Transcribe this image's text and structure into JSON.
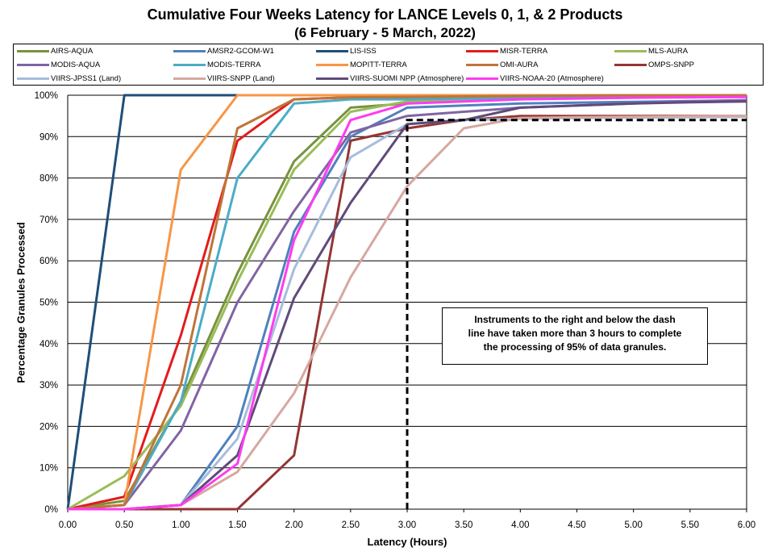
{
  "chart_data": {
    "type": "line",
    "title": "Cumulative Four Weeks Latency  for LANCE Levels 0, 1, & 2 Products",
    "subtitle": "(6  February   -  5  March,  2022)",
    "xlabel": "Latency (Hours)",
    "ylabel": "Percentage Granules Processed",
    "xlim": [
      0,
      6
    ],
    "ylim": [
      0,
      100
    ],
    "xticks": [
      "0.00",
      "0.50",
      "1.00",
      "1.50",
      "2.00",
      "2.50",
      "3.00",
      "3.50",
      "4.00",
      "4.50",
      "5.00",
      "5.50",
      "6.00"
    ],
    "yticks": [
      "0%",
      "10%",
      "20%",
      "30%",
      "40%",
      "50%",
      "60%",
      "70%",
      "80%",
      "90%",
      "100%"
    ],
    "grid": "horizontal",
    "legend_position": "top",
    "x": [
      0,
      0.5,
      1.0,
      1.5,
      2.0,
      2.5,
      3.0,
      3.5,
      4.0,
      4.5,
      5.0,
      5.5,
      6.0
    ],
    "series": [
      {
        "name": "AIRS-AQUA",
        "color": "#77933c",
        "values": [
          0,
          2,
          26,
          57,
          84,
          97,
          98,
          99,
          99,
          99.5,
          99.5,
          99.5,
          99.6
        ]
      },
      {
        "name": "AMSR2-GCOM-W1",
        "color": "#4f81bd",
        "values": [
          0,
          0,
          1,
          20,
          67,
          90,
          97,
          97.5,
          98,
          98.2,
          98.4,
          98.6,
          98.8
        ]
      },
      {
        "name": "LIS-ISS",
        "color": "#1f4e79",
        "values": [
          0,
          100,
          100,
          100,
          100,
          100,
          100,
          100,
          100,
          100,
          100,
          100,
          100
        ]
      },
      {
        "name": "MISR-TERRA",
        "color": "#e41a1c",
        "values": [
          0,
          3,
          42,
          89,
          99,
          99.5,
          99.5,
          99.6,
          99.7,
          99.8,
          99.9,
          100,
          100
        ]
      },
      {
        "name": "MLS-AURA",
        "color": "#9bbb59",
        "values": [
          0,
          8,
          25,
          55,
          82,
          96,
          98.5,
          99,
          99.2,
          99.4,
          99.5,
          99.6,
          99.7
        ]
      },
      {
        "name": "MODIS-AQUA",
        "color": "#8064a2",
        "values": [
          0,
          1,
          19,
          50,
          72,
          91,
          95,
          96,
          97,
          97.5,
          98,
          98.5,
          98.8
        ]
      },
      {
        "name": "MODIS-TERRA",
        "color": "#4bacc6",
        "values": [
          0,
          1,
          26,
          80,
          98,
          99,
          99,
          99.2,
          99.3,
          99.4,
          99.5,
          99.6,
          99.7
        ]
      },
      {
        "name": "MOPITT-TERRA",
        "color": "#f79646",
        "values": [
          0,
          1,
          82,
          100,
          100,
          100,
          100,
          100,
          100,
          100,
          100,
          100,
          100
        ]
      },
      {
        "name": "OMI-AURA",
        "color": "#c0743a",
        "values": [
          0,
          1,
          30,
          92,
          99,
          99.5,
          99.6,
          99.7,
          99.8,
          99.9,
          100,
          100,
          100
        ]
      },
      {
        "name": "OMPS-SNPP",
        "color": "#943634",
        "values": [
          0,
          0,
          0,
          0,
          13,
          89,
          92,
          94,
          95,
          95,
          95,
          95,
          95
        ]
      },
      {
        "name": "VIIRS-JPSS1 (Land)",
        "color": "#a6bddb",
        "values": [
          0,
          0,
          1,
          17,
          58,
          85,
          93,
          94,
          94.3,
          94.5,
          94.6,
          94.7,
          94.8
        ]
      },
      {
        "name": "VIIRS-SNPP (Land)",
        "color": "#d6a8a0",
        "values": [
          0,
          0,
          1,
          9,
          28,
          56,
          78,
          92,
          94.5,
          94.7,
          94.8,
          94.9,
          95
        ]
      },
      {
        "name": "VIIRS-SUOMI NPP (Atmosphere)",
        "color": "#604a7b",
        "values": [
          0,
          0,
          1,
          13,
          51,
          74,
          93,
          94,
          97,
          97.5,
          98,
          98.3,
          98.5
        ]
      },
      {
        "name": "VIIRS-NOAA-20 (Atmosphere)",
        "color": "#ff3cf0",
        "values": [
          0,
          0,
          1,
          11,
          65,
          94,
          98,
          98.5,
          99,
          99.2,
          99.4,
          99.5,
          99.6
        ]
      }
    ],
    "threshold_line": {
      "x": 3.0,
      "y": 94
    },
    "annotation": [
      "Instruments to the right and below the dash",
      "line have taken more than 3 hours to complete",
      "the processing of 95% of data granules."
    ]
  }
}
